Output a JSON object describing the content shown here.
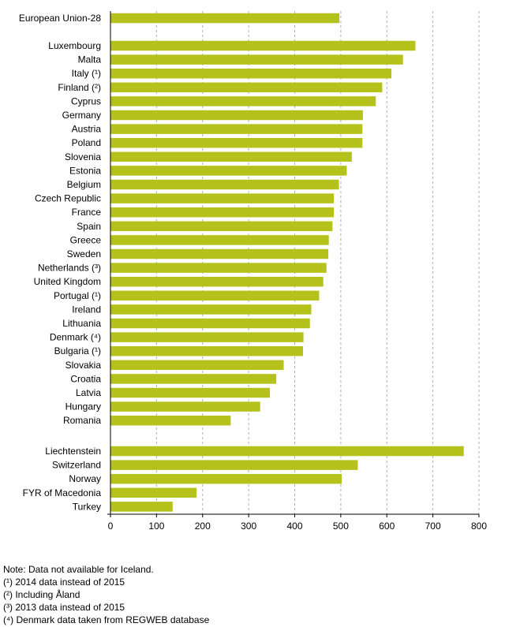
{
  "chart_data": {
    "type": "bar",
    "orientation": "horizontal",
    "title": "",
    "xlabel": "",
    "ylabel": "",
    "xlim": [
      0,
      800
    ],
    "xticks": [
      0,
      100,
      200,
      300,
      400,
      500,
      600,
      700,
      800
    ],
    "grid": "vertical dashed",
    "bar_color": "#b5c21b",
    "groups": [
      {
        "categories": [
          "European Union-28"
        ],
        "values": [
          497
        ]
      },
      {
        "categories": [
          "Luxembourg",
          "Malta",
          "Italy (¹)",
          "Finland (²)",
          "Cyprus",
          "Germany",
          "Austria",
          "Poland",
          "Slovenia",
          "Estonia",
          "Belgium",
          "Czech Republic",
          "France",
          "Spain",
          "Greece",
          "Sweden",
          "Netherlands (³)",
          "United Kingdom",
          "Portugal (¹)",
          "Ireland",
          "Lithuania",
          "Denmark (⁴)",
          "Bulgaria (¹)",
          "Slovakia",
          "Croatia",
          "Latvia",
          "Hungary",
          "Romania"
        ],
        "values": [
          662,
          635,
          610,
          590,
          576,
          548,
          547,
          547,
          524,
          513,
          496,
          485,
          485,
          482,
          474,
          473,
          469,
          462,
          453,
          436,
          433,
          419,
          418,
          376,
          360,
          346,
          325,
          261
        ]
      },
      {
        "categories": [
          "Liechtenstein",
          "Switzerland",
          "Norway",
          "FYR of Macedonia",
          "Turkey"
        ],
        "values": [
          767,
          537,
          502,
          187,
          135
        ]
      }
    ]
  },
  "notes": [
    "Note: Data not available for Iceland.",
    "(¹) 2014 data instead of 2015",
    "(²) Including Åland",
    "(³) 2013 data instead of 2015",
    "(⁴) Denmark data taken from REGWEB database"
  ]
}
